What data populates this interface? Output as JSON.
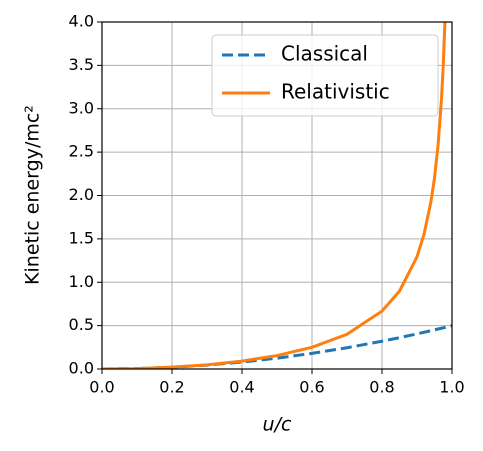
{
  "chart_data": {
    "type": "line",
    "xlabel": "u/c",
    "ylabel": "Kinetic energy/mc²",
    "x": [
      0,
      0.1,
      0.2,
      0.3,
      0.4,
      0.5,
      0.6,
      0.7,
      0.8,
      0.85,
      0.9,
      0.92,
      0.94,
      0.95,
      0.96,
      0.97,
      0.975,
      0.98,
      1.0
    ],
    "series": [
      {
        "name": "Classical",
        "color": "#1f77b4",
        "dash": true,
        "values": [
          0,
          0.005,
          0.02,
          0.045,
          0.08,
          0.125,
          0.18,
          0.245,
          0.32,
          0.361,
          0.405,
          0.423,
          0.442,
          0.451,
          0.461,
          0.47,
          0.475,
          0.48,
          0.5
        ]
      },
      {
        "name": "Relativistic",
        "color": "#ff7f0e",
        "dash": false,
        "values": [
          0,
          0.005,
          0.021,
          0.048,
          0.091,
          0.155,
          0.25,
          0.4,
          0.667,
          0.898,
          1.294,
          1.552,
          1.931,
          2.203,
          2.571,
          3.113,
          3.5,
          4.025,
          null
        ]
      }
    ],
    "xlim": [
      0,
      1
    ],
    "ylim": [
      0,
      4
    ],
    "xticks": [
      {
        "value": 0,
        "label": "0.0"
      },
      0.2,
      0.4,
      0.6,
      0.8,
      {
        "value": 1,
        "label": "1.0"
      }
    ],
    "yticks": [
      {
        "value": 0,
        "label": "0.0"
      },
      0.5,
      {
        "value": 1,
        "label": "1.0"
      },
      1.5,
      {
        "value": 2,
        "label": "2.0"
      },
      2.5,
      {
        "value": 3,
        "label": "3.0"
      },
      3.5,
      {
        "value": 4,
        "label": "4.0"
      }
    ],
    "grid": true,
    "legend": "upper right"
  }
}
